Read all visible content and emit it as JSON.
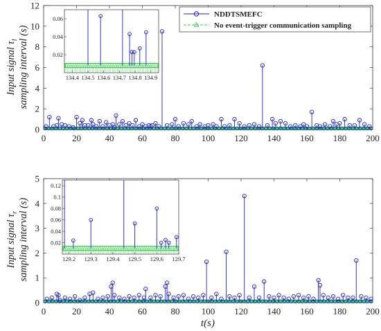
{
  "chart_data": [
    {
      "type": "line",
      "subtype": "stem",
      "panel": "top",
      "ylabel_line1": "Input signal τ",
      "ylabel_sub": "l",
      "ylabel_line2": "sampling interval (s)",
      "xlim": [
        0,
        200
      ],
      "ylim": [
        0,
        12
      ],
      "xticks": [
        0,
        20,
        40,
        60,
        80,
        100,
        120,
        140,
        160,
        180,
        200
      ],
      "yticks": [
        0,
        2,
        4,
        6,
        8,
        10,
        12
      ],
      "xtick_labels": [
        "0",
        "20",
        "40",
        "60",
        "80",
        "100",
        "120",
        "140",
        "160",
        "180",
        "200"
      ],
      "ytick_labels": [
        "0",
        "2",
        "4",
        "6",
        "8",
        "10",
        "12"
      ],
      "baseline_value": 0.1,
      "legend": {
        "placement": "top-right",
        "entries": [
          "NDDTSMEFC",
          "No event-trigger communication sampling"
        ]
      },
      "series": [
        {
          "name": "NDDTSMEFC",
          "color": "#1f1fd6",
          "marker": "circle",
          "x": [
            1.5,
            3.5,
            6,
            8,
            9,
            11,
            13,
            15.5,
            18,
            20,
            22,
            23.5,
            25,
            27,
            29,
            30,
            32,
            34,
            36,
            38,
            40,
            42,
            43,
            44,
            46,
            48,
            50,
            52,
            54,
            56,
            58,
            60,
            62,
            64,
            65,
            66,
            68,
            70,
            72,
            75,
            78,
            80,
            82,
            85,
            88,
            90,
            93,
            95,
            98,
            100,
            103,
            105,
            108,
            110,
            113,
            116,
            119,
            122,
            125,
            128,
            131,
            133,
            136,
            139,
            141,
            144,
            147,
            150,
            153,
            156,
            158,
            160,
            163,
            166,
            168,
            171,
            174,
            176,
            178,
            180,
            183,
            186,
            189,
            192,
            195,
            198
          ],
          "y": [
            0.3,
            1.2,
            0.3,
            0.4,
            1.1,
            0.5,
            0.4,
            0.3,
            0.2,
            1.2,
            0.6,
            0.9,
            0.4,
            0.4,
            0.9,
            0.5,
            0.3,
            0.8,
            0.3,
            0.7,
            0.4,
            0.5,
            0.2,
            1.35,
            0.5,
            0.8,
            0.4,
            0.6,
            0.4,
            0.9,
            0.3,
            0.5,
            0.3,
            0.4,
            0.3,
            0.4,
            0.6,
            0.3,
            9.5,
            0.4,
            0.5,
            1.0,
            0.3,
            0.6,
            0.5,
            0.8,
            0.3,
            0.5,
            0.3,
            0.4,
            0.5,
            0.3,
            1.0,
            0.3,
            0.4,
            1.0,
            0.6,
            0.3,
            0.4,
            0.5,
            0.3,
            6.2,
            0.4,
            1.0,
            0.6,
            0.8,
            0.6,
            0.3,
            0.4,
            0.3,
            0.5,
            0.3,
            1.7,
            0.4,
            0.3,
            0.5,
            0.3,
            0.8,
            0.5,
            0.6,
            1.0,
            0.4,
            0.4,
            0.9,
            0.5,
            0.3
          ]
        },
        {
          "name": "No event-trigger communication sampling",
          "color": "#2ecc40",
          "marker": "triangle",
          "constant_y": 0.1
        }
      ],
      "inset": {
        "xlim": [
          134.35,
          134.95
        ],
        "ylim": [
          0,
          0.07
        ],
        "xticks": [
          134.4,
          134.5,
          134.6,
          134.7,
          134.8,
          134.9
        ],
        "xtick_labels": [
          "134.4",
          "134.5",
          "134.6",
          "134.7",
          "134.8",
          "134.9"
        ],
        "yticks": [
          0.02,
          0.04,
          0.06
        ],
        "ytick_labels": [
          "0.02",
          "0.04",
          "0.06"
        ],
        "baseline_value": 0.008,
        "stems_x": [
          134.5,
          134.58,
          134.72,
          134.765,
          134.78,
          134.795,
          134.83,
          134.87
        ],
        "stems_y": [
          0.08,
          0.063,
          0.08,
          0.043,
          0.023,
          0.023,
          0.027,
          0.045
        ]
      }
    },
    {
      "type": "line",
      "subtype": "stem",
      "panel": "bottom",
      "ylabel_line1": "Input signal τ",
      "ylabel_sub": "r",
      "ylabel_line2": "sampling interval (s)",
      "xlabel": "t(s)",
      "xlim": [
        0,
        200
      ],
      "ylim": [
        0,
        5
      ],
      "xticks": [
        0,
        20,
        40,
        60,
        80,
        100,
        120,
        140,
        160,
        180,
        200
      ],
      "yticks": [
        0,
        1,
        2,
        3,
        4,
        5
      ],
      "xtick_labels": [
        "0",
        "20",
        "40",
        "60",
        "80",
        "100",
        "120",
        "140",
        "160",
        "180",
        "200"
      ],
      "ytick_labels": [
        "0",
        "1",
        "2",
        "3",
        "4",
        "5"
      ],
      "baseline_value": 0.05,
      "series": [
        {
          "name": "NDDTSMEFC",
          "color": "#1f1fd6",
          "marker": "circle",
          "x": [
            2,
            5,
            8,
            9,
            10,
            13,
            16,
            19,
            22,
            25,
            28,
            30,
            33,
            36,
            39,
            41,
            42,
            43,
            46,
            49,
            52,
            55,
            58,
            61,
            62,
            65,
            68,
            71,
            74,
            75,
            76,
            79,
            82,
            85,
            88,
            91,
            94,
            97,
            99,
            102,
            105,
            108,
            111,
            113,
            116,
            119,
            122,
            125,
            128,
            131,
            134,
            137,
            140,
            143,
            146,
            149,
            152,
            155,
            158,
            161,
            164,
            167,
            168,
            170,
            173,
            176,
            179,
            182,
            185,
            188,
            190,
            193,
            196,
            199
          ],
          "y": [
            0.15,
            0.2,
            0.35,
            0.3,
            0.1,
            0.2,
            0.15,
            0.25,
            0.1,
            0.2,
            0.35,
            0.4,
            0.15,
            0.2,
            0.25,
            0.65,
            0.8,
            0.3,
            0.2,
            0.15,
            0.25,
            0.2,
            0.3,
            0.2,
            0.55,
            0.2,
            0.3,
            0.25,
            0.65,
            0.8,
            0.35,
            0.2,
            0.25,
            0.3,
            0.15,
            0.25,
            0.2,
            0.3,
            1.65,
            0.2,
            0.35,
            0.15,
            2.05,
            0.25,
            0.2,
            0.3,
            4.3,
            0.2,
            0.65,
            0.2,
            0.85,
            0.25,
            0.2,
            0.3,
            0.2,
            0.15,
            0.25,
            0.3,
            0.2,
            0.25,
            0.15,
            0.9,
            0.7,
            0.3,
            0.2,
            0.25,
            0.15,
            0.3,
            0.2,
            0.2,
            1.7,
            0.25,
            0.2,
            0.15
          ]
        },
        {
          "name": "No event-trigger communication sampling",
          "color": "#2ecc40",
          "marker": "triangle",
          "constant_y": 0.05
        }
      ],
      "inset": {
        "xlim": [
          129.17,
          129.7
        ],
        "ylim": [
          0,
          0.13
        ],
        "xticks": [
          129.2,
          129.3,
          129.4,
          129.5,
          129.6,
          129.7
        ],
        "xtick_labels": [
          "129.2",
          "129.3",
          "129.4",
          "129.5",
          "129.6",
          "129.7"
        ],
        "yticks": [
          0.02,
          0.04,
          0.06,
          0.08,
          0.1,
          0.12
        ],
        "ytick_labels": [
          "0.02",
          "0.04",
          "0.06",
          "0.08",
          "0.1",
          "0.12"
        ],
        "baseline_value": 0.01,
        "stems_x": [
          129.18,
          129.22,
          129.3,
          129.45,
          129.5,
          129.6,
          129.62,
          129.64,
          129.655,
          129.69
        ],
        "stems_y": [
          0.14,
          0.024,
          0.06,
          0.14,
          0.054,
          0.08,
          0.02,
          0.025,
          0.02,
          0.03
        ]
      }
    }
  ]
}
